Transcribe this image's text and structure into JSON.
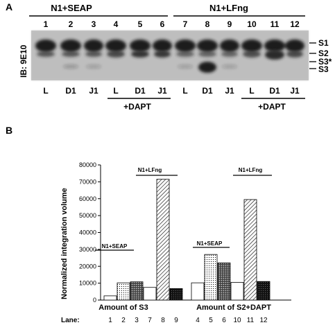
{
  "panel_a": {
    "letter": "A",
    "group_labels": [
      "N1+SEAP",
      "N1+LFng"
    ],
    "lane_numbers": [
      "1",
      "2",
      "3",
      "4",
      "5",
      "6",
      "7",
      "8",
      "9",
      "10",
      "11",
      "12"
    ],
    "ylabel": "IB: 9E10",
    "band_labels": [
      "S1",
      "S2",
      "S3*",
      "S3"
    ],
    "ligand_labels": [
      "L",
      "D1",
      "J1",
      "L",
      "D1",
      "J1",
      "L",
      "D1",
      "J1",
      "L",
      "D1",
      "J1"
    ],
    "dapt_labels": [
      "+DAPT",
      "+DAPT"
    ]
  },
  "panel_b": {
    "letter": "B",
    "lane_caption": "Lane:"
  },
  "chart_data": {
    "type": "bar",
    "ylabel": "Normalized integration volume",
    "ylim": [
      0,
      80000
    ],
    "yticks": [
      "0",
      "10000",
      "20000",
      "30000",
      "40000",
      "50000",
      "60000",
      "70000",
      "80000"
    ],
    "categories": [
      "1",
      "2",
      "3",
      "7",
      "8",
      "9",
      "4",
      "5",
      "6",
      "10",
      "11",
      "12"
    ],
    "values": [
      2500,
      10200,
      10800,
      7500,
      71500,
      6800,
      10200,
      27000,
      22000,
      10500,
      59500,
      11000
    ],
    "patterns": [
      "white",
      "dots",
      "cross",
      "white",
      "diag",
      "dark",
      "white",
      "dots",
      "cross",
      "white",
      "diag",
      "dark"
    ],
    "group_labels": [
      "Amount of S3",
      "Amount of S2+DAPT"
    ],
    "annotations": [
      "N1+SEAP",
      "N1+LFng",
      "N1+SEAP",
      "N1+LFng"
    ]
  }
}
